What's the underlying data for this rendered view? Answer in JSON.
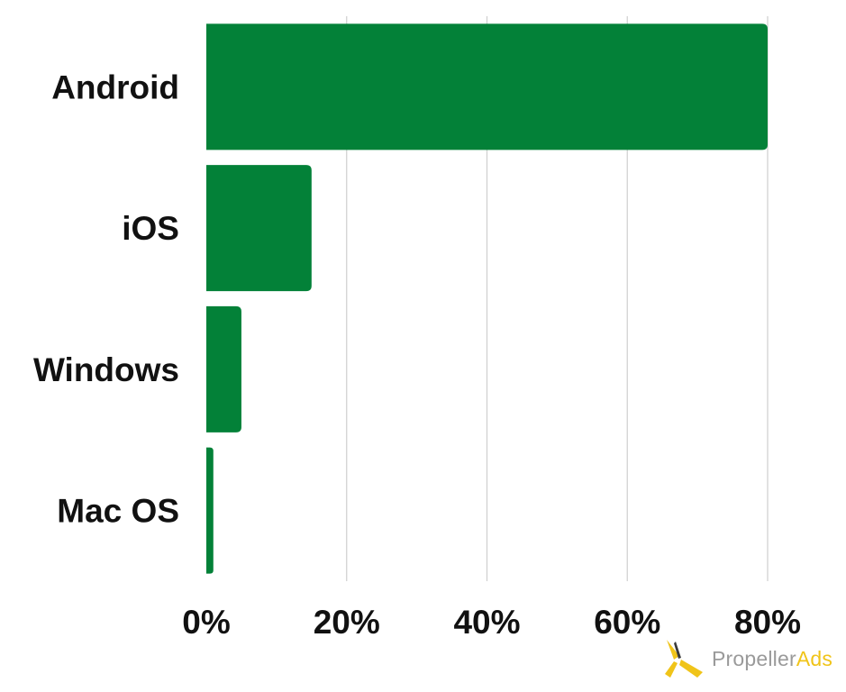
{
  "chart_data": {
    "type": "bar",
    "orientation": "horizontal",
    "categories": [
      "Android",
      "iOS",
      "Windows",
      "Mac OS"
    ],
    "values": [
      80,
      15,
      5,
      1
    ],
    "unit": "%",
    "xlim": [
      0,
      80
    ],
    "xticks": [
      "0%",
      "20%",
      "40%",
      "60%",
      "80%"
    ],
    "grid": true,
    "color": "#038138"
  },
  "brand": {
    "name_part1": "Propeller",
    "name_part2": "Ads",
    "logo_color": "#f0c419",
    "logo_dark": "#3a3a3a"
  }
}
